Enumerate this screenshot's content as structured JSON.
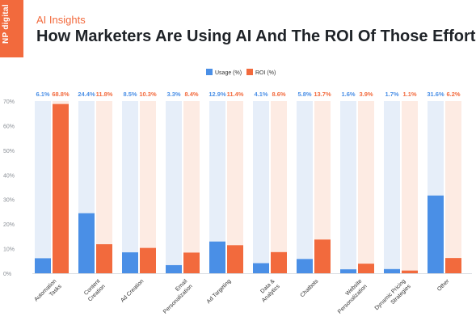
{
  "header": {
    "logo_text": "NP digital",
    "kicker": "AI Insights",
    "title": "How Marketers Are Using AI And The ROI Of Those Efforts"
  },
  "colors": {
    "usage": "#4a8fe6",
    "roi": "#f26a3d",
    "usage_bg": "#e6eef9",
    "roi_bg": "#fdebe3",
    "accent": "#f26a3d"
  },
  "chart_data": {
    "type": "bar",
    "title": "How Marketers Are Using AI And The ROI Of Those Efforts",
    "xlabel": "",
    "ylabel": "",
    "ylim": [
      0,
      70
    ],
    "yticks": [
      "0%",
      "10%",
      "20%",
      "30%",
      "40%",
      "50%",
      "60%",
      "70%"
    ],
    "legend_position": "top-center",
    "grid": false,
    "categories": [
      [
        "Automation",
        "Tasks"
      ],
      [
        "Content",
        "Creation"
      ],
      [
        "Ad Creation"
      ],
      [
        "Email",
        "Personalization"
      ],
      [
        "Ad Targeting"
      ],
      [
        "Data &",
        "Analytics"
      ],
      [
        "Chatbots"
      ],
      [
        "Website",
        "Personalization"
      ],
      [
        "Dynamic Pricing",
        "Strategies"
      ],
      [
        "Other"
      ]
    ],
    "series": [
      {
        "name": "Usage (%)",
        "values": [
          6.1,
          24.4,
          8.5,
          3.3,
          12.9,
          4.1,
          5.8,
          1.6,
          1.7,
          31.6
        ],
        "labels": [
          "6.1%",
          "24.4%",
          "8.5%",
          "3.3%",
          "12.9%",
          "4.1%",
          "5.8%",
          "1.6%",
          "1.7%",
          "31.6%"
        ]
      },
      {
        "name": "ROI (%)",
        "values": [
          68.8,
          11.8,
          10.3,
          8.4,
          11.4,
          8.6,
          13.7,
          3.9,
          1.1,
          6.2
        ],
        "labels": [
          "68.8%",
          "11.8%",
          "10.3%",
          "8.4%",
          "11.4%",
          "8.6%",
          "13.7%",
          "3.9%",
          "1.1%",
          "6.2%"
        ]
      }
    ]
  }
}
